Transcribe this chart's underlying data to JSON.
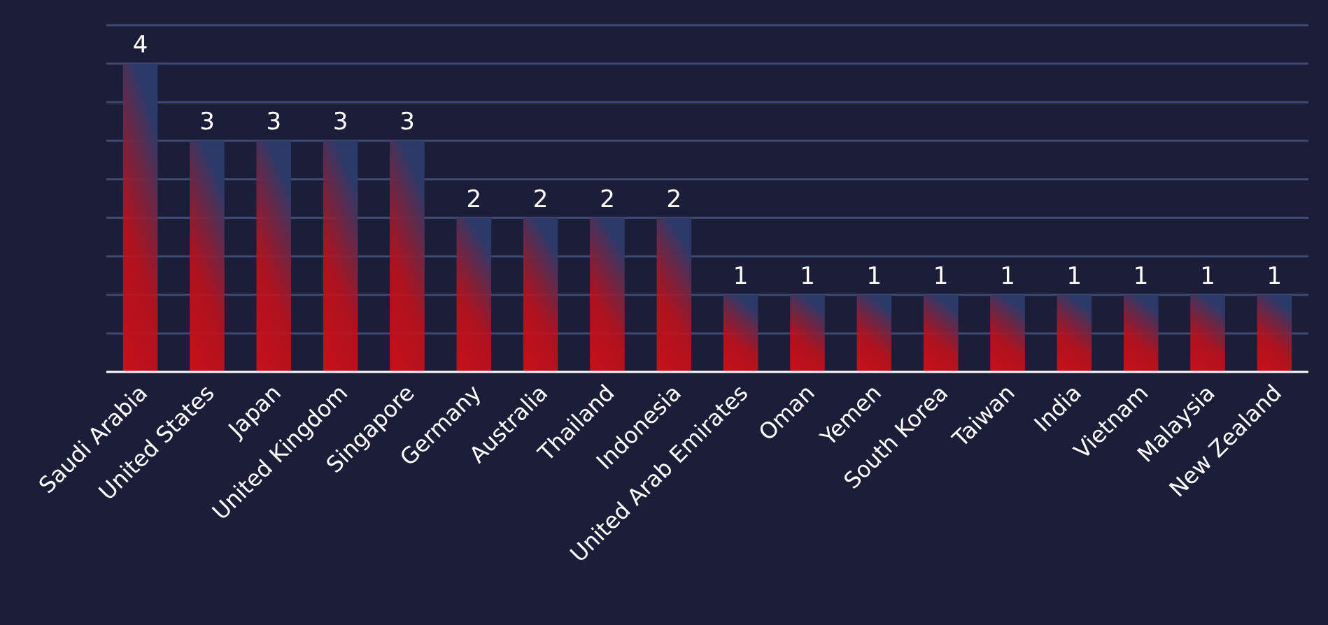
{
  "chart_data": {
    "type": "bar",
    "categories": [
      "Saudi Arabia",
      "United States",
      "Japan",
      "United Kingdom",
      "Singapore",
      "Germany",
      "Australia",
      "Thailand",
      "Indonesia",
      "United Arab Emirates",
      "Oman",
      "Yemen",
      "South Korea",
      "Taiwan",
      "India",
      "Vietnam",
      "Malaysia",
      "New Zealand"
    ],
    "values": [
      4,
      3,
      3,
      3,
      3,
      2,
      2,
      2,
      2,
      1,
      1,
      1,
      1,
      1,
      1,
      1,
      1,
      1
    ],
    "color": "#c8101a",
    "data_labels": true,
    "ylim": [
      0,
      4.5
    ],
    "yticks": [
      {
        "value": 0,
        "label": null
      },
      {
        "value": 0.5,
        "label": null
      },
      {
        "value": 1,
        "label": null
      },
      {
        "value": 1.5,
        "label": null
      },
      {
        "value": 2,
        "label": null
      },
      {
        "value": 2.5,
        "label": null
      },
      {
        "value": 3,
        "label": null
      },
      {
        "value": 3.5,
        "label": null
      },
      {
        "value": 4,
        "label": null
      },
      {
        "value": 4.5,
        "label": null
      }
    ],
    "grid": "y",
    "tick_labels": "x"
  }
}
